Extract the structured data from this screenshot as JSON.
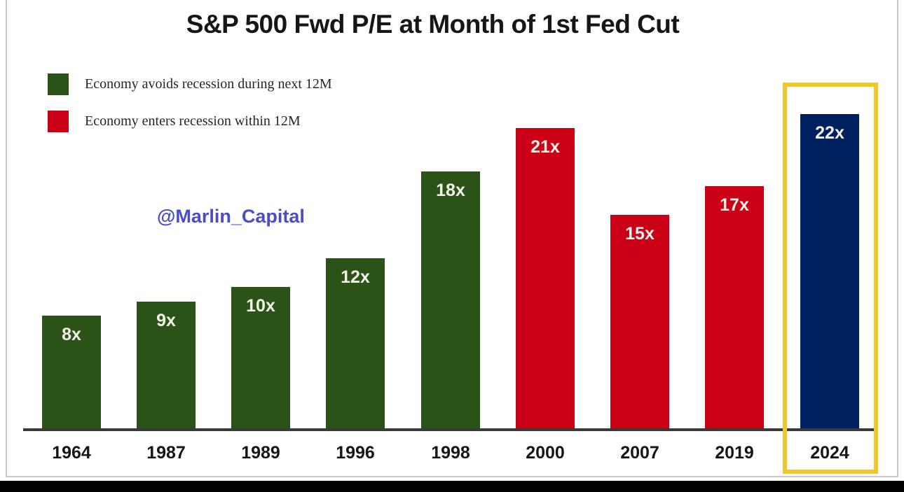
{
  "chart_data": {
    "type": "bar",
    "title": "S&P 500 Fwd P/E at Month of 1st Fed Cut",
    "categories": [
      "1964",
      "1987",
      "1989",
      "1996",
      "1998",
      "2000",
      "2007",
      "2019",
      "2024"
    ],
    "values": [
      8,
      9,
      10,
      12,
      18,
      21,
      15,
      17,
      22
    ],
    "bar_labels": [
      "8x",
      "9x",
      "10x",
      "12x",
      "18x",
      "21x",
      "15x",
      "17x",
      "22x"
    ],
    "bar_status": [
      "avoids",
      "avoids",
      "avoids",
      "avoids",
      "avoids",
      "enters",
      "enters",
      "enters",
      "current"
    ],
    "xlabel": "",
    "ylabel": "",
    "ylim": [
      0,
      23
    ],
    "grid": false,
    "legend_position": "top-left",
    "legend": [
      {
        "label": "Economy avoids recession during next 12M",
        "status": "avoids"
      },
      {
        "label": "Economy enters recession within 12M",
        "status": "enters"
      }
    ],
    "watermark": "@Marlin_Capital",
    "highlighted_category": "2024"
  },
  "colors": {
    "avoids": "#2b5217",
    "enters": "#cb0016",
    "current": "#00215f",
    "highlight_box": "#eec829",
    "watermark": "#4a4dc6",
    "axis_line": "#3a3a3a",
    "bar_value_label": "#f2f2e9",
    "year_label": "#161616",
    "title": "#161616",
    "frame_border": "#c9c9c9",
    "bottom_strip": "#000000"
  }
}
